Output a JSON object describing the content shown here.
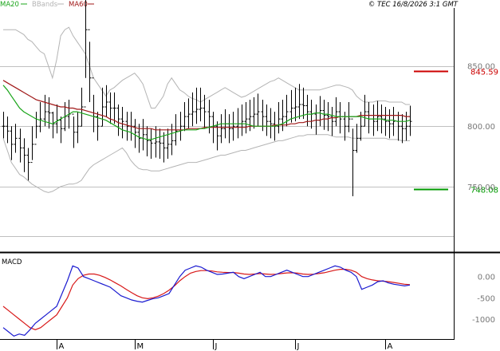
{
  "chart_data": [
    {
      "type": "ohlc",
      "panel": "price",
      "legend": [
        {
          "label": "MA20",
          "color": "#1aa51a"
        },
        {
          "label": "BBands",
          "color": "#b4b4b4"
        },
        {
          "label": "MA60",
          "color": "#a01818"
        }
      ],
      "copyright": "© TEC 16/8/2026 3:1 GMT",
      "y_ticks": [
        {
          "value": 850,
          "label": "850.00",
          "hidden_behind": "845.59"
        },
        {
          "value": 800,
          "label": "800.00"
        },
        {
          "value": 750,
          "label": "750.00",
          "hidden_behind": "748.08"
        }
      ],
      "ylim": [
        697,
        898
      ],
      "markers": [
        {
          "label": "845.59",
          "value": 845.59,
          "color": "#cc0000"
        },
        {
          "label": "748.08",
          "value": 748.08,
          "color": "#009900"
        }
      ],
      "x_tick_labels": [
        "A",
        "M",
        "J",
        "J",
        "A"
      ],
      "grid": true,
      "series": {
        "close": [
          800,
          796,
          785,
          790,
          782,
          776,
          770,
          785,
          800,
          806,
          812,
          811,
          802,
          805,
          798,
          808,
          810,
          795,
          800,
          816,
          880,
          840,
          808,
          800,
          816,
          820,
          815,
          815,
          806,
          804,
          800,
          800,
          795,
          790,
          793,
          788,
          786,
          787,
          786,
          782,
          785,
          788,
          796,
          800,
          808,
          810,
          812,
          814,
          815,
          812,
          808,
          800,
          792,
          798,
          802,
          798,
          800,
          802,
          804,
          806,
          808,
          810,
          812,
          808,
          804,
          802,
          800,
          806,
          808,
          812,
          815,
          816,
          818,
          817,
          812,
          810,
          805,
          813,
          809,
          808,
          804,
          812,
          806,
          800,
          806,
          780,
          790,
          800,
          812,
          806,
          804,
          808,
          806,
          804,
          802,
          804,
          800,
          798,
          800,
          804
        ],
        "ma20": [
          834,
          830,
          825,
          820,
          815,
          812,
          810,
          808,
          806,
          805,
          804,
          803,
          802,
          804,
          806,
          808,
          810,
          812,
          812,
          811,
          810,
          809,
          808,
          807,
          806,
          805,
          803,
          801,
          799,
          797,
          796,
          795,
          793,
          791,
          790,
          789,
          789,
          790,
          791,
          792,
          793,
          794,
          795,
          796,
          797,
          797,
          797,
          797,
          798,
          798,
          799,
          800,
          801,
          802,
          802,
          802,
          802,
          802,
          802,
          802,
          801,
          800,
          800,
          800,
          800,
          800,
          800,
          801,
          802,
          804,
          806,
          807,
          808,
          809,
          810,
          810,
          811,
          811,
          810,
          810,
          809,
          808,
          808,
          808,
          808,
          808,
          808,
          808,
          807,
          806,
          806,
          806,
          806,
          805,
          805,
          805,
          804,
          804,
          804,
          805
        ],
        "ma60": [
          838,
          836,
          834,
          832,
          830,
          828,
          826,
          824,
          822,
          821,
          820,
          819,
          818,
          817,
          816,
          816,
          815,
          815,
          814,
          814,
          813,
          812,
          811,
          810,
          809,
          808,
          806,
          805,
          803,
          802,
          801,
          800,
          799,
          798,
          798,
          798,
          798,
          797,
          797,
          797,
          797,
          797,
          797,
          797,
          797,
          798,
          798,
          798,
          798,
          799,
          799,
          799,
          799,
          799,
          799,
          799,
          799,
          799,
          799,
          799,
          800,
          800,
          800,
          800,
          800,
          800,
          801,
          801,
          801,
          801,
          802,
          802,
          803,
          803,
          804,
          804,
          805,
          805,
          806,
          806,
          807,
          807,
          808,
          808,
          808,
          808,
          808,
          809,
          809,
          809,
          809,
          809,
          809,
          809,
          809,
          809,
          809,
          809,
          808,
          808
        ],
        "bb_upper": [
          880,
          880,
          880,
          880,
          878,
          876,
          872,
          870,
          866,
          862,
          860,
          850,
          840,
          855,
          875,
          880,
          882,
          875,
          870,
          865,
          860,
          850,
          840,
          835,
          830,
          825,
          830,
          832,
          835,
          838,
          840,
          842,
          844,
          840,
          835,
          825,
          815,
          815,
          820,
          825,
          835,
          840,
          835,
          830,
          828,
          825,
          823,
          822,
          820,
          822,
          824,
          826,
          828,
          830,
          832,
          830,
          828,
          826,
          824,
          825,
          827,
          829,
          831,
          833,
          835,
          837,
          838,
          840,
          838,
          836,
          834,
          832,
          830,
          830,
          830,
          830,
          830,
          830,
          831,
          832,
          833,
          834,
          834,
          833,
          832,
          830,
          825,
          822,
          820,
          820,
          820,
          821,
          821,
          821,
          820,
          820,
          820,
          820,
          818,
          818
        ],
        "bb_lower": [
          790,
          780,
          770,
          765,
          760,
          758,
          755,
          752,
          750,
          748,
          746,
          745,
          746,
          748,
          750,
          751,
          752,
          752,
          753,
          755,
          760,
          765,
          768,
          770,
          772,
          774,
          776,
          778,
          780,
          782,
          778,
          772,
          768,
          765,
          764,
          764,
          763,
          763,
          763,
          764,
          765,
          766,
          767,
          768,
          769,
          770,
          770,
          770,
          771,
          772,
          773,
          774,
          775,
          776,
          776,
          777,
          778,
          779,
          780,
          780,
          781,
          782,
          783,
          784,
          785,
          786,
          787,
          788,
          788,
          789,
          790,
          791,
          792,
          792,
          793,
          793,
          793,
          793,
          793,
          793,
          792,
          791,
          791,
          791,
          791,
          790,
          790,
          790,
          790,
          790,
          790,
          790,
          790,
          790,
          789,
          789,
          789,
          788,
          788,
          788
        ],
        "high": [
          812,
          808,
          800,
          802,
          798,
          790,
          782,
          800,
          812,
          820,
          826,
          824,
          812,
          818,
          808,
          820,
          822,
          808,
          812,
          832,
          905,
          870,
          826,
          812,
          832,
          834,
          828,
          828,
          818,
          816,
          812,
          812,
          806,
          802,
          806,
          800,
          798,
          800,
          798,
          795,
          798,
          802,
          810,
          812,
          820,
          823,
          828,
          832,
          832,
          826,
          822,
          812,
          804,
          810,
          814,
          810,
          812,
          815,
          818,
          820,
          822,
          824,
          827,
          822,
          818,
          815,
          812,
          820,
          822,
          826,
          830,
          832,
          835,
          832,
          826,
          822,
          818,
          825,
          822,
          820,
          816,
          824,
          820,
          812,
          820,
          798,
          802,
          812,
          826,
          820,
          818,
          821,
          818,
          816,
          814,
          816,
          812,
          810,
          812,
          817
        ],
        "low": [
          790,
          786,
          772,
          778,
          770,
          762,
          755,
          772,
          790,
          795,
          800,
          798,
          790,
          794,
          786,
          796,
          798,
          782,
          786,
          800,
          840,
          820,
          795,
          788,
          800,
          808,
          802,
          802,
          792,
          790,
          788,
          788,
          782,
          778,
          780,
          775,
          773,
          774,
          773,
          770,
          773,
          776,
          784,
          788,
          796,
          798,
          800,
          802,
          804,
          798,
          794,
          786,
          780,
          786,
          790,
          786,
          788,
          790,
          792,
          794,
          796,
          798,
          800,
          796,
          792,
          790,
          788,
          794,
          796,
          800,
          803,
          804,
          806,
          806,
          800,
          798,
          793,
          800,
          797,
          796,
          792,
          800,
          794,
          788,
          795,
          742,
          778,
          788,
          800,
          794,
          792,
          796,
          794,
          792,
          790,
          792,
          788,
          786,
          788,
          792
        ]
      }
    },
    {
      "type": "line",
      "panel": "macd",
      "title": "MACD",
      "y_ticks": [
        {
          "value": 0,
          "label": "0.00"
        },
        {
          "value": -500,
          "label": "-500"
        },
        {
          "value": -1000,
          "label": "-1000"
        }
      ],
      "ylim": [
        -1450,
        500
      ],
      "x_tick_labels": [
        "A",
        "M",
        "J",
        "J",
        "A"
      ],
      "series": [
        {
          "name": "macd",
          "color": "#1a1ad0",
          "values": [
            -1200,
            -1300,
            -1400,
            -1350,
            -1380,
            -1250,
            -1100,
            -1000,
            -900,
            -800,
            -700,
            -400,
            -100,
            250,
            200,
            0,
            -50,
            -100,
            -150,
            -200,
            -250,
            -350,
            -450,
            -500,
            -550,
            -580,
            -600,
            -560,
            -520,
            -500,
            -450,
            -400,
            -200,
            0,
            150,
            200,
            250,
            220,
            150,
            100,
            50,
            60,
            80,
            100,
            0,
            -50,
            0,
            50,
            100,
            0,
            0,
            50,
            100,
            150,
            100,
            50,
            0,
            0,
            50,
            100,
            150,
            200,
            250,
            220,
            150,
            100,
            0,
            -300,
            -250,
            -200,
            -120,
            -100,
            -150,
            -180,
            -200,
            -220,
            -200
          ]
        },
        {
          "name": "signal",
          "color": "#d81818",
          "values": [
            -700,
            -800,
            -900,
            -1000,
            -1100,
            -1200,
            -1250,
            -1200,
            -1100,
            -1000,
            -900,
            -700,
            -500,
            -200,
            -50,
            30,
            60,
            60,
            30,
            -20,
            -80,
            -150,
            -220,
            -300,
            -380,
            -450,
            -500,
            -520,
            -500,
            -460,
            -400,
            -320,
            -220,
            -100,
            0,
            80,
            120,
            140,
            140,
            130,
            110,
            100,
            95,
            95,
            80,
            60,
            50,
            60,
            70,
            60,
            50,
            55,
            70,
            85,
            90,
            80,
            60,
            50,
            55,
            70,
            90,
            120,
            150,
            170,
            170,
            150,
            100,
            0,
            -50,
            -80,
            -100,
            -110,
            -120,
            -140,
            -160,
            -180,
            -190
          ]
        }
      ]
    }
  ]
}
